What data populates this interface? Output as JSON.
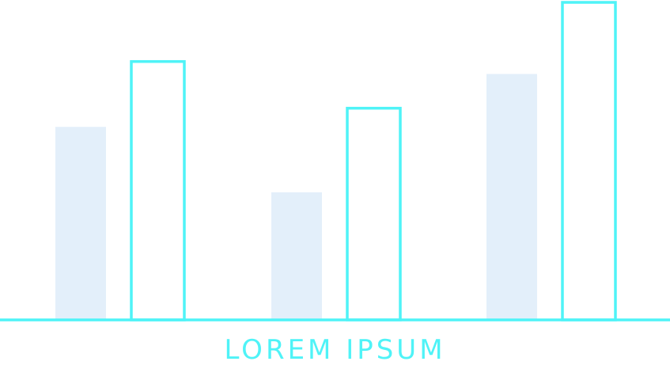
{
  "chart_data": {
    "type": "bar",
    "categories": [
      "",
      "",
      ""
    ],
    "series": [
      {
        "values": [
          62,
          41,
          79
        ]
      },
      {
        "values": [
          83,
          68,
          102
        ]
      }
    ],
    "ylim": [
      0,
      102
    ],
    "grid": false,
    "legend": "none",
    "title": "",
    "xlabel": "LOREM IPSUM",
    "ylabel": ""
  },
  "colors": {
    "filled_bar": "#e3effa",
    "outline_bar": "#4ff3f7",
    "axis": "#4ff3f7",
    "caption": "#4ff3f7"
  }
}
